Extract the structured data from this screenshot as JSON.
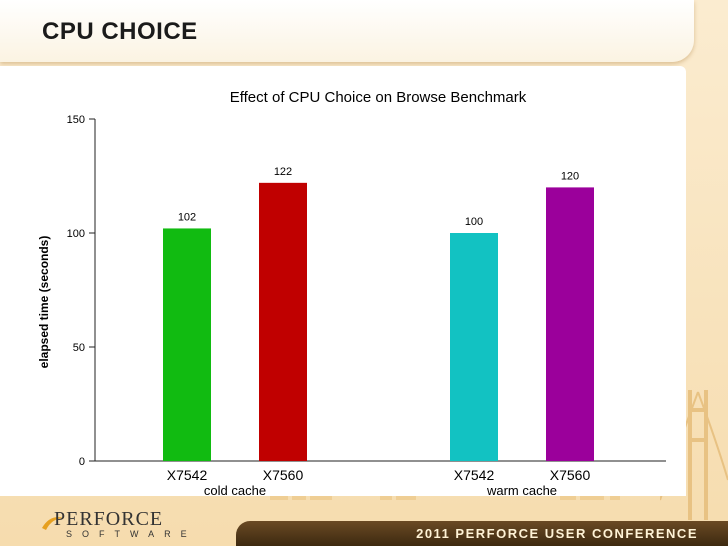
{
  "slide": {
    "title": "CPU CHOICE"
  },
  "footer": {
    "logo_main": "PERFORCE",
    "logo_sub": "SOFTWARE",
    "conference": "2011 PERFORCE USER CONFERENCE"
  },
  "chart_data": {
    "type": "bar",
    "title": "Effect of CPU Choice on Browse Benchmark",
    "ylabel": "elapsed time (seconds)",
    "ylim": [
      0,
      150
    ],
    "yticks": [
      0,
      50,
      100,
      150
    ],
    "groups": [
      {
        "label": "cold cache",
        "bars": [
          {
            "category": "X7542",
            "value": 102,
            "color": "#11bb11"
          },
          {
            "category": "X7560",
            "value": 122,
            "color": "#c00000"
          }
        ]
      },
      {
        "label": "warm cache",
        "bars": [
          {
            "category": "X7542",
            "value": 100,
            "color": "#12c2c2"
          },
          {
            "category": "X7560",
            "value": 120,
            "color": "#9b009b"
          }
        ]
      }
    ]
  }
}
